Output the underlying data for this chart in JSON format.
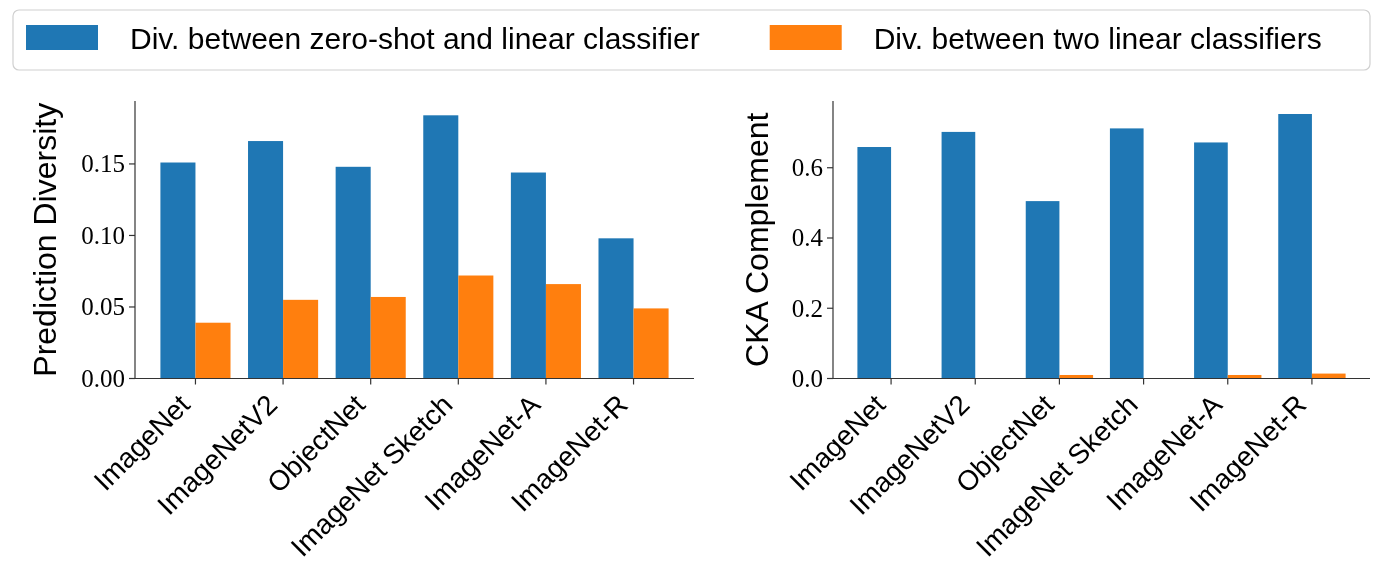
{
  "chart_data": [
    {
      "type": "bar",
      "ylabel": "Prediction Diversity",
      "categories": [
        "ImageNet",
        "ImageNetV2",
        "ObjectNet",
        "ImageNet Sketch",
        "ImageNet-A",
        "ImageNet-R"
      ],
      "series": [
        {
          "name": "Div. between zero-shot and linear classifier",
          "color": "#1f77b4",
          "values": [
            0.151,
            0.166,
            0.148,
            0.184,
            0.144,
            0.098
          ]
        },
        {
          "name": "Div. between two linear classifiers",
          "color": "#ff7f0e",
          "values": [
            0.039,
            0.055,
            0.057,
            0.072,
            0.066,
            0.049
          ]
        }
      ],
      "ylim": [
        0,
        0.194
      ],
      "yticks": [
        {
          "value": 0,
          "label": "0.00"
        },
        {
          "value": 0.05,
          "label": "0.05"
        },
        {
          "value": 0.1,
          "label": "0.10"
        },
        {
          "value": 0.15,
          "label": "0.15"
        }
      ],
      "legend": "top"
    },
    {
      "type": "bar",
      "ylabel": "CKA Complement",
      "categories": [
        "ImageNet",
        "ImageNetV2",
        "ObjectNet",
        "ImageNet Sketch",
        "ImageNet-A",
        "ImageNet-R"
      ],
      "series": [
        {
          "color": "#1f77b4",
          "values": [
            0.659,
            0.702,
            0.505,
            0.712,
            0.672,
            0.753
          ]
        },
        {
          "color": "#ff7f0e",
          "values": [
            0,
            0,
            0.01,
            0,
            0.01,
            0.014
          ]
        }
      ],
      "ylim": [
        0,
        0.79
      ],
      "yticks": [
        {
          "value": 0,
          "label": "0.0"
        },
        0.2,
        0.4,
        0.6
      ]
    }
  ]
}
